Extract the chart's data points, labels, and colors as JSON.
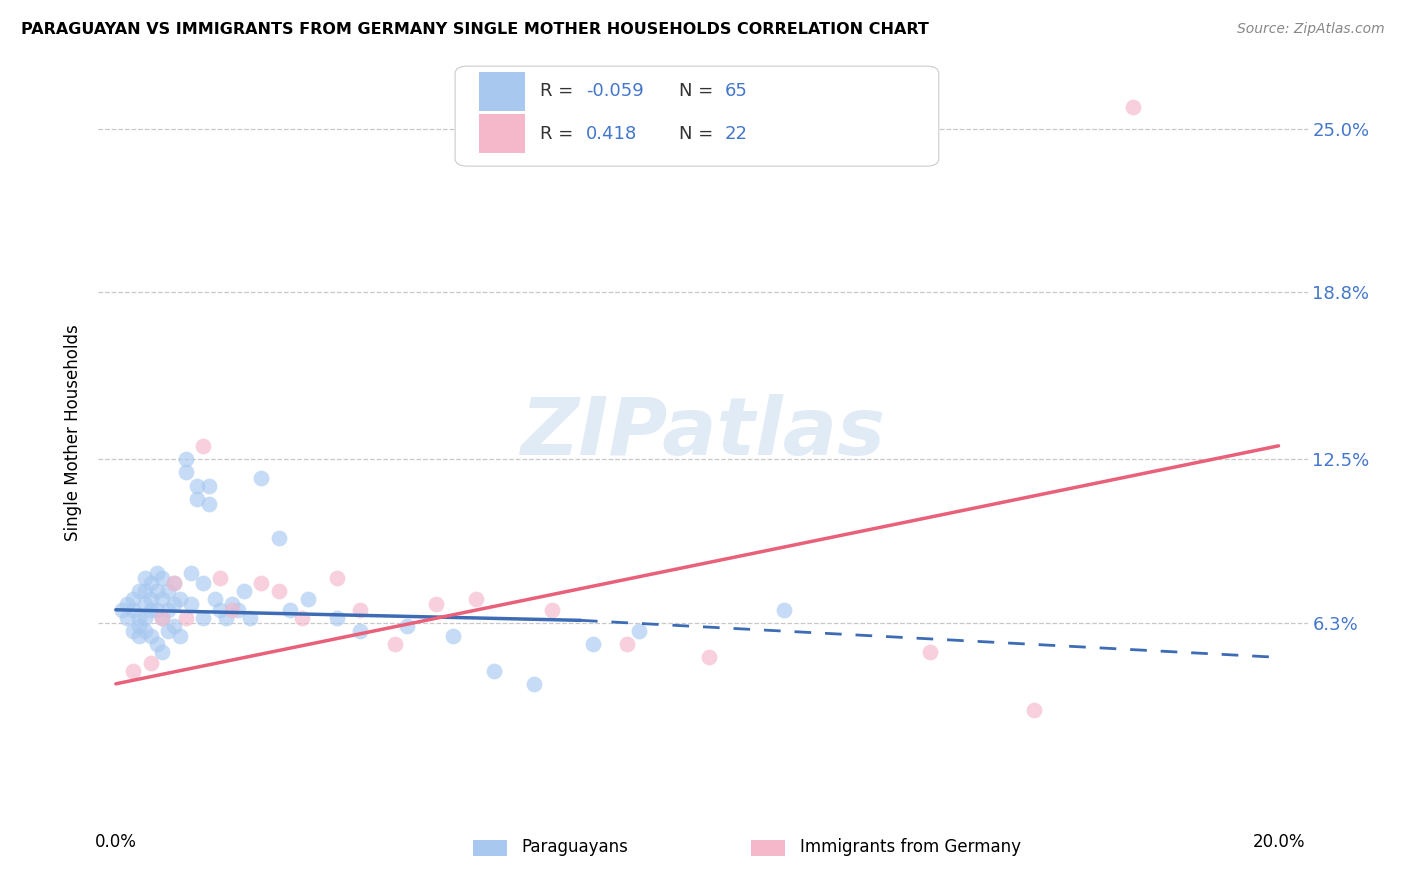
{
  "title": "PARAGUAYAN VS IMMIGRANTS FROM GERMANY SINGLE MOTHER HOUSEHOLDS CORRELATION CHART",
  "source": "Source: ZipAtlas.com",
  "ylabel": "Single Mother Households",
  "ytick_labels": [
    "25.0%",
    "18.8%",
    "12.5%",
    "6.3%"
  ],
  "ytick_values": [
    0.25,
    0.188,
    0.125,
    0.063
  ],
  "xlim": [
    0.0,
    0.2
  ],
  "ylim": [
    0.0,
    0.275
  ],
  "color_blue": "#A8C8F0",
  "color_pink": "#F5B8CB",
  "color_blue_line": "#3D6CB5",
  "color_pink_line": "#E8607A",
  "watermark_color": "#D8E8F0",
  "paraguayan_x": [
    0.001,
    0.002,
    0.002,
    0.003,
    0.003,
    0.003,
    0.004,
    0.004,
    0.004,
    0.004,
    0.005,
    0.005,
    0.005,
    0.005,
    0.005,
    0.006,
    0.006,
    0.006,
    0.006,
    0.007,
    0.007,
    0.007,
    0.007,
    0.008,
    0.008,
    0.008,
    0.008,
    0.009,
    0.009,
    0.009,
    0.01,
    0.01,
    0.01,
    0.011,
    0.011,
    0.012,
    0.012,
    0.013,
    0.013,
    0.014,
    0.014,
    0.015,
    0.015,
    0.016,
    0.016,
    0.017,
    0.018,
    0.019,
    0.02,
    0.021,
    0.022,
    0.023,
    0.025,
    0.028,
    0.03,
    0.033,
    0.038,
    0.042,
    0.05,
    0.058,
    0.065,
    0.072,
    0.082,
    0.09,
    0.115
  ],
  "paraguayan_y": [
    0.068,
    0.07,
    0.065,
    0.072,
    0.068,
    0.06,
    0.075,
    0.065,
    0.062,
    0.058,
    0.08,
    0.075,
    0.07,
    0.065,
    0.06,
    0.078,
    0.072,
    0.068,
    0.058,
    0.082,
    0.075,
    0.068,
    0.055,
    0.08,
    0.072,
    0.065,
    0.052,
    0.075,
    0.068,
    0.06,
    0.078,
    0.07,
    0.062,
    0.072,
    0.058,
    0.125,
    0.12,
    0.082,
    0.07,
    0.115,
    0.11,
    0.078,
    0.065,
    0.115,
    0.108,
    0.072,
    0.068,
    0.065,
    0.07,
    0.068,
    0.075,
    0.065,
    0.118,
    0.095,
    0.068,
    0.072,
    0.065,
    0.06,
    0.062,
    0.058,
    0.045,
    0.04,
    0.055,
    0.06,
    0.068
  ],
  "germany_x": [
    0.003,
    0.006,
    0.008,
    0.01,
    0.012,
    0.015,
    0.018,
    0.02,
    0.025,
    0.028,
    0.032,
    0.038,
    0.042,
    0.048,
    0.055,
    0.062,
    0.075,
    0.088,
    0.102,
    0.14,
    0.158,
    0.175
  ],
  "germany_y": [
    0.045,
    0.048,
    0.065,
    0.078,
    0.065,
    0.13,
    0.08,
    0.068,
    0.078,
    0.075,
    0.065,
    0.08,
    0.068,
    0.055,
    0.07,
    0.072,
    0.068,
    0.055,
    0.05,
    0.052,
    0.03,
    0.258
  ],
  "par_line_x0": 0.0,
  "par_line_x_solid_end": 0.08,
  "par_line_x1": 0.2,
  "par_line_y0": 0.068,
  "par_line_y_solid_end": 0.064,
  "par_line_y1": 0.05,
  "ger_line_x0": 0.0,
  "ger_line_x1": 0.2,
  "ger_line_y0": 0.04,
  "ger_line_y1": 0.13
}
